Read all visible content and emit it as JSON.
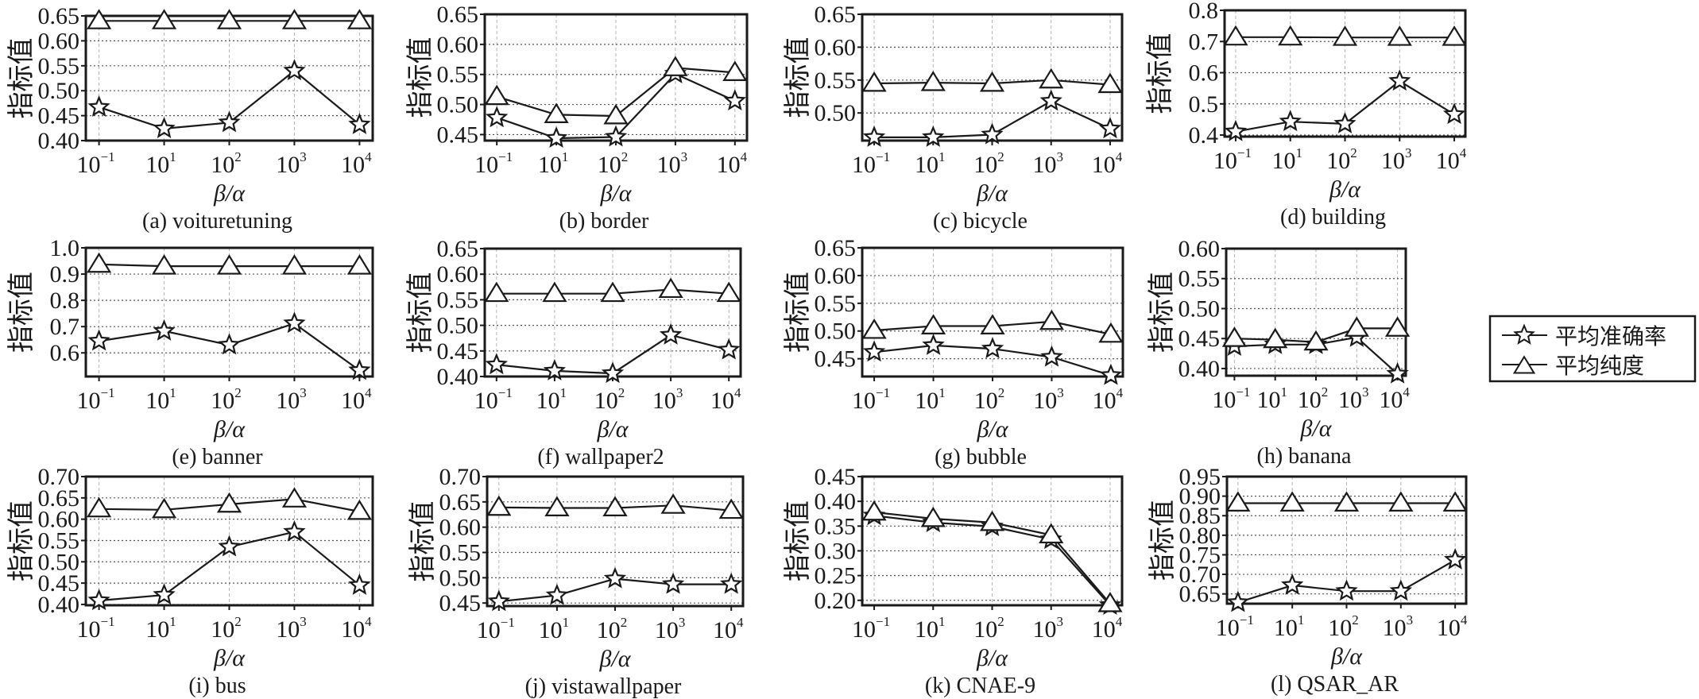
{
  "chart_data": {
    "type": "line",
    "shared": {
      "x": [
        0.1,
        10,
        100,
        1000,
        10000
      ],
      "x_tick_labels": [
        {
          "base": "10",
          "exp": "−1"
        },
        {
          "base": "10",
          "exp": "1"
        },
        {
          "base": "10",
          "exp": "2"
        },
        {
          "base": "10",
          "exp": "3"
        },
        {
          "base": "10",
          "exp": "4"
        }
      ],
      "xlabel": "β/α",
      "ylabel": "指标值",
      "grid": true,
      "legend": {
        "placement": "right",
        "entries": [
          {
            "name": "平均准确率",
            "marker": "star"
          },
          {
            "name": "平均纯度",
            "marker": "triangle"
          }
        ]
      }
    },
    "subplots": [
      {
        "id": "a",
        "caption": "(a) voituretuning",
        "ylim": [
          0.4,
          0.65
        ],
        "yticks": [
          0.4,
          0.45,
          0.5,
          0.55,
          0.6,
          0.65
        ],
        "ytick_labels": [
          "0.40",
          "0.45",
          "0.50",
          "0.55",
          "0.60",
          "0.65"
        ],
        "series": [
          {
            "name": "平均准确率",
            "values": [
              0.467,
              0.424,
              0.436,
              0.54,
              0.432
            ]
          },
          {
            "name": "平均纯度",
            "values": [
              0.64,
              0.64,
              0.64,
              0.64,
              0.64
            ]
          }
        ]
      },
      {
        "id": "b",
        "caption": "(b) border",
        "ylim": [
          0.44,
          0.65
        ],
        "yticks": [
          0.45,
          0.5,
          0.55,
          0.6,
          0.65
        ],
        "ytick_labels": [
          "0.45",
          "0.50",
          "0.55",
          "0.60",
          "0.65"
        ],
        "series": [
          {
            "name": "平均准确率",
            "values": [
              0.478,
              0.444,
              0.446,
              0.551,
              0.506
            ]
          },
          {
            "name": "平均纯度",
            "values": [
              0.513,
              0.483,
              0.481,
              0.561,
              0.553
            ]
          }
        ]
      },
      {
        "id": "c",
        "caption": "(c) bicycle",
        "ylim": [
          0.458,
          0.65
        ],
        "yticks": [
          0.5,
          0.55,
          0.6,
          0.65
        ],
        "ytick_labels": [
          "0.50",
          "0.55",
          "0.60",
          "0.65"
        ],
        "series": [
          {
            "name": "平均准确率",
            "values": [
              0.463,
              0.463,
              0.467,
              0.518,
              0.476
            ]
          },
          {
            "name": "平均纯度",
            "values": [
              0.545,
              0.546,
              0.545,
              0.55,
              0.543
            ]
          }
        ]
      },
      {
        "id": "d",
        "caption": "(d) building",
        "ylim": [
          0.395,
          0.8
        ],
        "yticks": [
          0.4,
          0.5,
          0.6,
          0.7,
          0.8
        ],
        "ytick_labels": [
          "0.4",
          "0.5",
          "0.6",
          "0.7",
          "0.8"
        ],
        "series": [
          {
            "name": "平均准确率",
            "values": [
              0.411,
              0.443,
              0.436,
              0.573,
              0.466
            ]
          },
          {
            "name": "平均纯度",
            "values": [
              0.714,
              0.714,
              0.713,
              0.713,
              0.713
            ]
          }
        ]
      },
      {
        "id": "e",
        "caption": "(e) banner",
        "ylim": [
          0.51,
          1.0
        ],
        "yticks": [
          0.6,
          0.7,
          0.8,
          0.9,
          1.0
        ],
        "ytick_labels": [
          "0.6",
          "0.7",
          "0.8",
          "0.9",
          "1.0"
        ],
        "series": [
          {
            "name": "平均准确率",
            "values": [
              0.645,
              0.683,
              0.63,
              0.712,
              0.533
            ]
          },
          {
            "name": "平均纯度",
            "values": [
              0.937,
              0.93,
              0.93,
              0.93,
              0.93
            ]
          }
        ]
      },
      {
        "id": "f",
        "caption": "(f) wallpaper2",
        "ylim": [
          0.4,
          0.65
        ],
        "yticks": [
          0.4,
          0.45,
          0.5,
          0.55,
          0.6,
          0.65
        ],
        "ytick_labels": [
          "0.40",
          "0.45",
          "0.50",
          "0.55",
          "0.60",
          "0.65"
        ],
        "series": [
          {
            "name": "平均准确率",
            "values": [
              0.423,
              0.411,
              0.406,
              0.481,
              0.452
            ]
          },
          {
            "name": "平均纯度",
            "values": [
              0.562,
              0.562,
              0.562,
              0.57,
              0.562
            ]
          }
        ]
      },
      {
        "id": "g",
        "caption": "(g) bubble",
        "ylim": [
          0.418,
          0.65
        ],
        "yticks": [
          0.45,
          0.5,
          0.55,
          0.6,
          0.65
        ],
        "ytick_labels": [
          "0.45",
          "0.50",
          "0.55",
          "0.60",
          "0.65"
        ],
        "series": [
          {
            "name": "平均准确率",
            "values": [
              0.462,
              0.474,
              0.468,
              0.453,
              0.42
            ]
          },
          {
            "name": "平均纯度",
            "values": [
              0.501,
              0.509,
              0.509,
              0.517,
              0.494
            ]
          }
        ]
      },
      {
        "id": "h",
        "caption": "(h) banana",
        "ylim": [
          0.388,
          0.6
        ],
        "yticks": [
          0.4,
          0.45,
          0.5,
          0.55,
          0.6
        ],
        "ytick_labels": [
          "0.40",
          "0.45",
          "0.50",
          "0.55",
          "0.60"
        ],
        "series": [
          {
            "name": "平均准确率",
            "values": [
              0.437,
              0.44,
              0.44,
              0.452,
              0.391
            ]
          },
          {
            "name": "平均纯度",
            "values": [
              0.45,
              0.448,
              0.444,
              0.467,
              0.467
            ]
          }
        ]
      },
      {
        "id": "i",
        "caption": "(i) bus",
        "ylim": [
          0.398,
          0.7
        ],
        "yticks": [
          0.4,
          0.45,
          0.5,
          0.55,
          0.6,
          0.65,
          0.7
        ],
        "ytick_labels": [
          "0.40",
          "0.45",
          "0.50",
          "0.55",
          "0.60",
          "0.65",
          "0.70"
        ],
        "series": [
          {
            "name": "平均准确率",
            "values": [
              0.409,
              0.422,
              0.535,
              0.57,
              0.445
            ]
          },
          {
            "name": "平均纯度",
            "values": [
              0.624,
              0.622,
              0.635,
              0.647,
              0.618
            ]
          }
        ]
      },
      {
        "id": "j",
        "caption": "(j) vistawallpaper",
        "ylim": [
          0.444,
          0.7
        ],
        "yticks": [
          0.45,
          0.5,
          0.55,
          0.6,
          0.65,
          0.7
        ],
        "ytick_labels": [
          "0.45",
          "0.50",
          "0.55",
          "0.60",
          "0.65",
          "0.70"
        ],
        "series": [
          {
            "name": "平均准确率",
            "values": [
              0.453,
              0.465,
              0.498,
              0.487,
              0.487
            ]
          },
          {
            "name": "平均纯度",
            "values": [
              0.639,
              0.638,
              0.638,
              0.643,
              0.633
            ]
          }
        ]
      },
      {
        "id": "k",
        "caption": "(k) CNAE-9",
        "ylim": [
          0.19,
          0.45
        ],
        "yticks": [
          0.2,
          0.25,
          0.3,
          0.35,
          0.4,
          0.45
        ],
        "ytick_labels": [
          "0.20",
          "0.25",
          "0.30",
          "0.35",
          "0.40",
          "0.45"
        ],
        "series": [
          {
            "name": "平均准确率",
            "values": [
              0.371,
              0.357,
              0.349,
              0.323,
              0.19
            ]
          },
          {
            "name": "平均纯度",
            "values": [
              0.378,
              0.365,
              0.357,
              0.332,
              0.193
            ]
          }
        ]
      },
      {
        "id": "l",
        "caption": "(l) QSAR_AR",
        "ylim": [
          0.625,
          0.95
        ],
        "yticks": [
          0.65,
          0.7,
          0.75,
          0.8,
          0.85,
          0.9,
          0.95
        ],
        "ytick_labels": [
          "0.65",
          "0.70",
          "0.75",
          "0.80",
          "0.85",
          "0.90",
          "0.95"
        ],
        "series": [
          {
            "name": "平均准确率",
            "values": [
              0.628,
              0.672,
              0.657,
              0.657,
              0.737
            ]
          },
          {
            "name": "平均纯度",
            "values": [
              0.882,
              0.882,
              0.882,
              0.882,
              0.882
            ]
          }
        ]
      }
    ]
  }
}
